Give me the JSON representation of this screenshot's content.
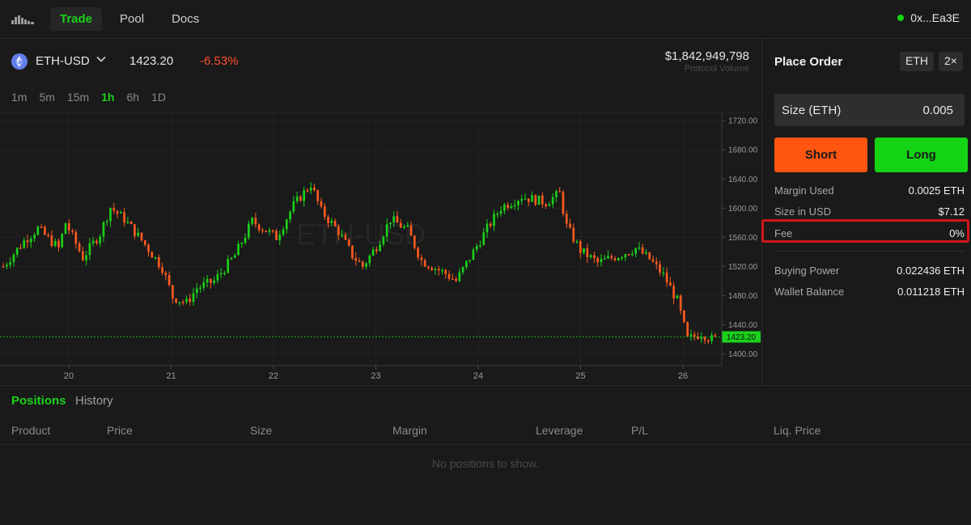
{
  "nav": {
    "logo_icon": "bars-logo-icon",
    "items": [
      {
        "label": "Trade",
        "active": true
      },
      {
        "label": "Pool",
        "active": false
      },
      {
        "label": "Docs",
        "active": false
      }
    ],
    "wallet": "0x...Ea3E",
    "wallet_status_color": "#11d411"
  },
  "market": {
    "pair": "ETH-USD",
    "price": "1423.20",
    "change": "-6.53%",
    "volume": "$1,842,949,798",
    "volume_label": "Protocol Volume",
    "intervals": [
      "1m",
      "5m",
      "15m",
      "1h",
      "6h",
      "1D"
    ],
    "active_interval": "1h",
    "colors": {
      "up": "#1bd11b",
      "down": "#ff5a1f"
    }
  },
  "chart_data": {
    "type": "candlestick",
    "watermark": "ETH-USD",
    "x_ticks": [
      "20",
      "21",
      "22",
      "23",
      "24",
      "25",
      "26"
    ],
    "y_ticks": [
      "1720.00",
      "1680.00",
      "1640.00",
      "1600.00",
      "1560.00",
      "1520.00",
      "1480.00",
      "1440.00",
      "1400.00"
    ],
    "ylim": [
      1386,
      1728
    ],
    "current_price": "1423.20",
    "close_path": [
      [
        0,
        1520
      ],
      [
        6,
        1555
      ],
      [
        10,
        1572
      ],
      [
        16,
        1545
      ],
      [
        18,
        1580
      ],
      [
        23,
        1532
      ],
      [
        28,
        1565
      ],
      [
        31,
        1601
      ],
      [
        35,
        1585
      ],
      [
        41,
        1550
      ],
      [
        46,
        1518
      ],
      [
        49,
        1478
      ],
      [
        53,
        1470
      ],
      [
        56,
        1490
      ],
      [
        61,
        1500
      ],
      [
        67,
        1535
      ],
      [
        72,
        1582
      ],
      [
        79,
        1560
      ],
      [
        84,
        1604
      ],
      [
        89,
        1633
      ],
      [
        92,
        1596
      ],
      [
        97,
        1568
      ],
      [
        101,
        1535
      ],
      [
        104,
        1520
      ],
      [
        108,
        1548
      ],
      [
        112,
        1585
      ],
      [
        117,
        1570
      ],
      [
        121,
        1528
      ],
      [
        128,
        1510
      ],
      [
        131,
        1500
      ],
      [
        136,
        1540
      ],
      [
        140,
        1572
      ],
      [
        144,
        1601
      ],
      [
        150,
        1616
      ],
      [
        157,
        1608
      ],
      [
        161,
        1620
      ],
      [
        163,
        1575
      ],
      [
        167,
        1542
      ],
      [
        172,
        1525
      ],
      [
        178,
        1535
      ],
      [
        183,
        1545
      ],
      [
        187,
        1530
      ],
      [
        191,
        1508
      ],
      [
        195,
        1473
      ],
      [
        198,
        1420
      ],
      [
        202,
        1428
      ],
      [
        205,
        1420
      ],
      [
        206,
        1421
      ]
    ]
  },
  "order": {
    "title": "Place Order",
    "asset_chip": "ETH",
    "leverage_chip": "2×",
    "size_label": "Size (ETH)",
    "size_value": "0.005",
    "short_label": "Short",
    "long_label": "Long",
    "short_color": "#ff5510",
    "long_color": "#14d214",
    "margin_used_label": "Margin Used",
    "margin_used_value": "0.0025 ETH",
    "size_usd_label": "Size in USD",
    "size_usd_value": "$7.12",
    "fee_label": "Fee",
    "fee_value": "0%",
    "buying_power_label": "Buying Power",
    "buying_power_value": "0.022436 ETH",
    "wallet_balance_label": "Wallet Balance",
    "wallet_balance_value": "0.011218 ETH",
    "highlight_color": "#d0161c"
  },
  "positions": {
    "tabs": [
      "Positions",
      "History"
    ],
    "columns": [
      "Product",
      "Price",
      "Size",
      "Margin",
      "Leverage",
      "P/L",
      "Liq. Price"
    ],
    "empty_message": "No positions to show."
  }
}
